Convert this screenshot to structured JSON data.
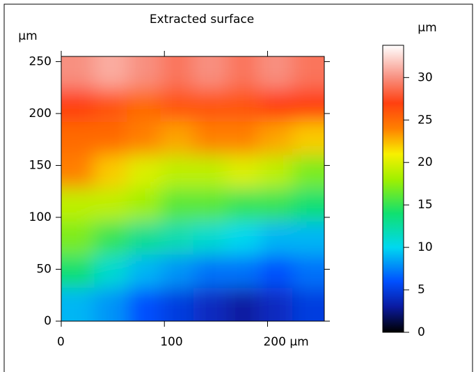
{
  "chart_data": {
    "type": "heatmap",
    "title": "Extracted surface",
    "y_label": "µm",
    "colorbar_label": "µm",
    "xlim": [
      0,
      255
    ],
    "ylim": [
      0,
      255
    ],
    "xticks": [
      0,
      100,
      {
        "value": 200,
        "label": "200 µm"
      }
    ],
    "yticks": [
      0,
      50,
      100,
      150,
      200,
      250
    ],
    "zlim": [
      0,
      33.8
    ],
    "zticks": [
      0,
      5,
      10,
      15,
      20,
      25,
      30
    ],
    "colormap": [
      {
        "value": 0,
        "color": "#000000"
      },
      {
        "value": 3,
        "color": "#0a1aa0"
      },
      {
        "value": 6,
        "color": "#0050ff"
      },
      {
        "value": 10,
        "color": "#00d8f0"
      },
      {
        "value": 14,
        "color": "#10e070"
      },
      {
        "value": 18,
        "color": "#a0f000"
      },
      {
        "value": 21,
        "color": "#f8f000"
      },
      {
        "value": 24,
        "color": "#ff8000"
      },
      {
        "value": 27,
        "color": "#ff4010"
      },
      {
        "value": 30,
        "color": "#f89080"
      },
      {
        "value": 33.8,
        "color": "#ffffff"
      }
    ],
    "x": [
      16,
      48,
      80,
      112,
      144,
      176,
      208,
      240
    ],
    "y": [
      240,
      208,
      176,
      144,
      112,
      80,
      48,
      16
    ],
    "z": [
      [
        30,
        31,
        30,
        29,
        30,
        29,
        30,
        29
      ],
      [
        27,
        26,
        25,
        26,
        26,
        26,
        27,
        27
      ],
      [
        25,
        25,
        24,
        23,
        24,
        24,
        23,
        22
      ],
      [
        24,
        22,
        20,
        19,
        19,
        20,
        19,
        17
      ],
      [
        19,
        19,
        18,
        16,
        16,
        15,
        15,
        14
      ],
      [
        17,
        15,
        13,
        12,
        11,
        10,
        9,
        9
      ],
      [
        14,
        11,
        9,
        8,
        7,
        7,
        6,
        7
      ],
      [
        9,
        8,
        6,
        5,
        4,
        3,
        4,
        5
      ]
    ]
  }
}
